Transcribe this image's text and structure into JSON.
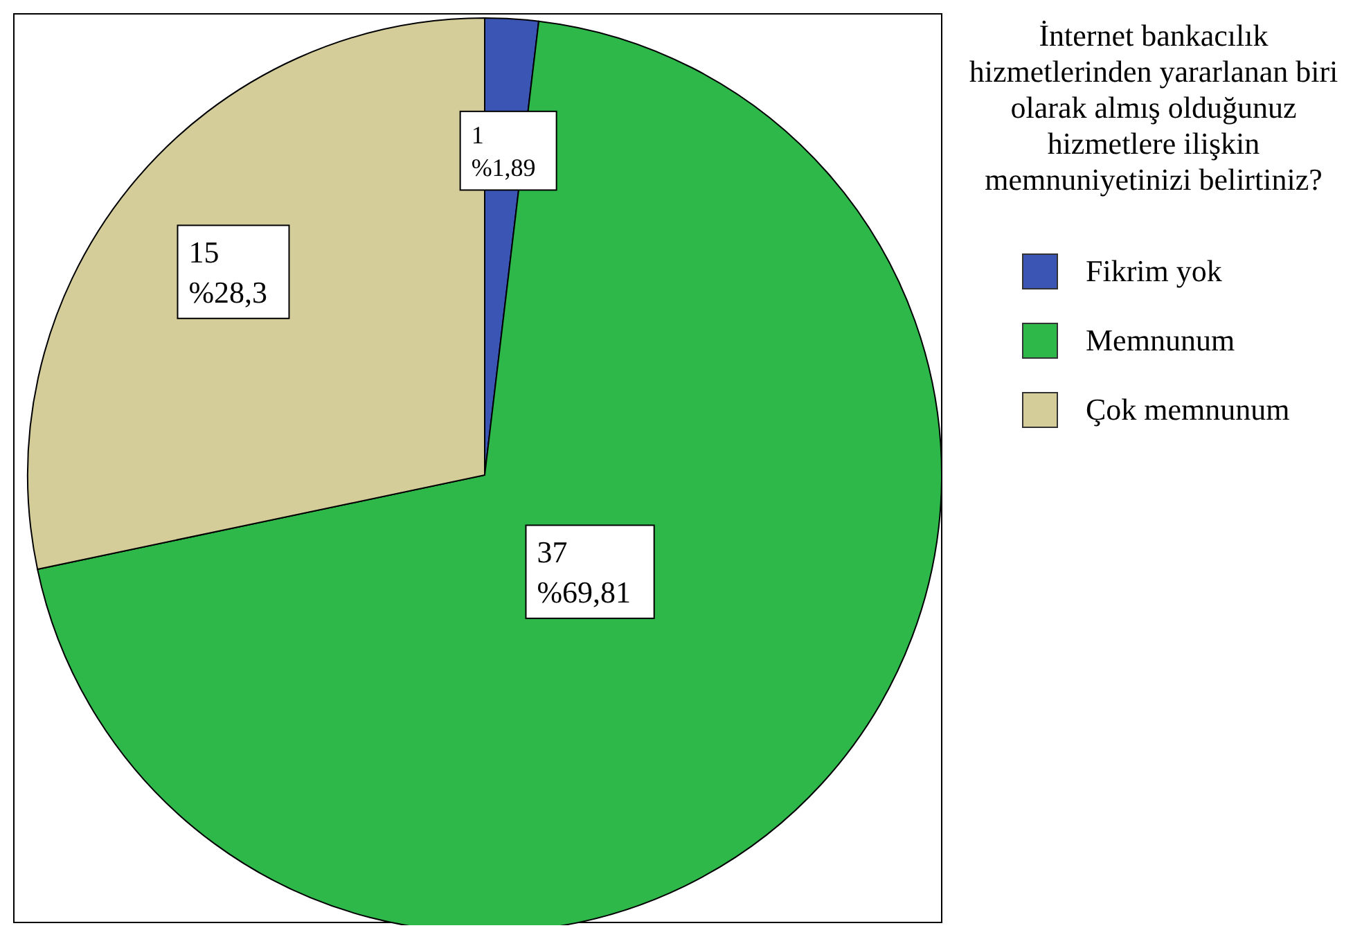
{
  "chart_data": {
    "type": "pie",
    "legend_title": "İnternet bankacılık hizmetlerinden yararlanan biri olarak almış olduğunuz hizmetlere ilişkin memnuniyetinizi belirtiniz?",
    "categories": [
      "Fikrim yok",
      "Memnunum",
      "Çok memnunum"
    ],
    "values": [
      1,
      37,
      15
    ],
    "colors": [
      "#3a55b4",
      "#2eb84a",
      "#d4cd9a"
    ],
    "value_labels": [
      "1\n%1,89",
      "37\n%69,81",
      "15\n%28,3"
    ],
    "legend": "right"
  }
}
